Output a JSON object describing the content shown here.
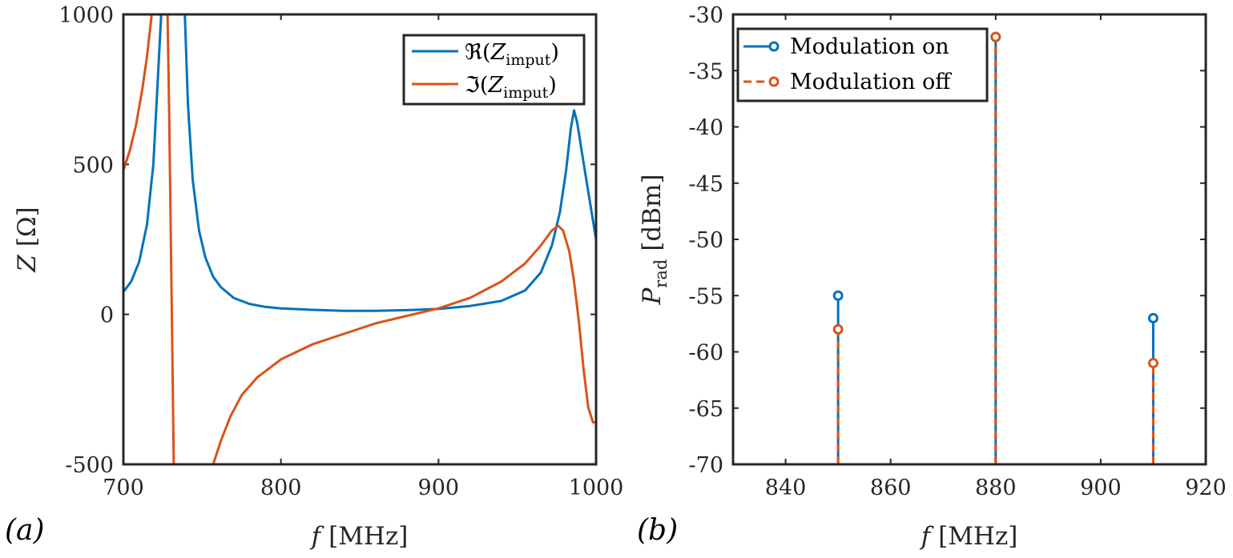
{
  "colors": {
    "blue": "#0072BD",
    "orange": "#D95319",
    "axis": "#262626"
  },
  "chart_data": [
    {
      "type": "line",
      "panel_label": "(a)",
      "xlabel": {
        "symbol": "f",
        "unit": "[MHz]"
      },
      "ylabel": {
        "symbol": "Z",
        "unit": "[Ω]"
      },
      "xlim": [
        700,
        1000
      ],
      "ylim": [
        -500,
        1000
      ],
      "xticks": [
        "700",
        "800",
        "900",
        "1000"
      ],
      "yticks": [
        "-500",
        "0",
        "500",
        "1000"
      ],
      "legend_position": "top-right",
      "series": [
        {
          "name": "ℜ(Zimput)",
          "legend_fn": "ℜ(",
          "legend_var": "Z",
          "legend_sub": "imput",
          "legend_close": ")",
          "color": "#0072BD",
          "dash": "solid",
          "points": [
            [
              700,
              75
            ],
            [
              705,
              110
            ],
            [
              710,
              175
            ],
            [
              715,
              300
            ],
            [
              719,
              500
            ],
            [
              722,
              800
            ],
            [
              724,
              1000
            ],
            [
              739,
              1000
            ],
            [
              741,
              700
            ],
            [
              744,
              450
            ],
            [
              748,
              280
            ],
            [
              752,
              190
            ],
            [
              757,
              125
            ],
            [
              762,
              90
            ],
            [
              770,
              55
            ],
            [
              780,
              35
            ],
            [
              790,
              25
            ],
            [
              800,
              20
            ],
            [
              820,
              15
            ],
            [
              840,
              12
            ],
            [
              860,
              12
            ],
            [
              880,
              14
            ],
            [
              900,
              18
            ],
            [
              920,
              28
            ],
            [
              940,
              45
            ],
            [
              955,
              80
            ],
            [
              965,
              140
            ],
            [
              972,
              230
            ],
            [
              977,
              340
            ],
            [
              981,
              480
            ],
            [
              984,
              620
            ],
            [
              986,
              680
            ],
            [
              988,
              640
            ],
            [
              991,
              540
            ],
            [
              995,
              410
            ],
            [
              1000,
              250
            ]
          ]
        },
        {
          "name": "ℑ(Zimput)",
          "legend_fn": "ℑ(",
          "legend_var": "Z",
          "legend_sub": "imput",
          "legend_close": ")",
          "color": "#D95319",
          "dash": "solid",
          "segments": [
            [
              [
                700,
                480
              ],
              [
                704,
                545
              ],
              [
                708,
                630
              ],
              [
                712,
                750
              ],
              [
                715,
                860
              ],
              [
                718,
                1000
              ]
            ],
            [
              [
                728,
                1000
              ],
              [
                729,
                700
              ],
              [
                730,
                300
              ],
              [
                731,
                -100
              ],
              [
                732,
                -500
              ]
            ],
            [
              [
                757,
                -500
              ],
              [
                762,
                -420
              ],
              [
                768,
                -340
              ],
              [
                775,
                -270
              ],
              [
                785,
                -210
              ],
              [
                800,
                -150
              ],
              [
                820,
                -100
              ],
              [
                840,
                -65
              ],
              [
                860,
                -30
              ],
              [
                880,
                -5
              ],
              [
                900,
                20
              ],
              [
                920,
                55
              ],
              [
                940,
                110
              ],
              [
                955,
                170
              ],
              [
                965,
                230
              ],
              [
                972,
                280
              ],
              [
                976,
                295
              ],
              [
                979,
                280
              ],
              [
                983,
                210
              ],
              [
                986,
                110
              ],
              [
                989,
                -20
              ],
              [
                992,
                -180
              ],
              [
                995,
                -310
              ],
              [
                998,
                -360
              ],
              [
                1000,
                -360
              ]
            ]
          ]
        }
      ]
    },
    {
      "type": "stem",
      "panel_label": "(b)",
      "xlabel": {
        "symbol": "f",
        "unit": "[MHz]"
      },
      "ylabel": {
        "symbol": "P",
        "sub": "rad",
        "unit": "[dBm]"
      },
      "xlim": [
        830,
        920
      ],
      "ylim": [
        -70,
        -30
      ],
      "xticks": [
        "840",
        "860",
        "880",
        "900",
        "920"
      ],
      "yticks": [
        "-30",
        "-35",
        "-40",
        "-45",
        "-50",
        "-55",
        "-60",
        "-65",
        "-70"
      ],
      "legend_position": "top-left",
      "series": [
        {
          "name": "Modulation on",
          "color": "#0072BD",
          "dash": "solid",
          "x": [
            850,
            880,
            910
          ],
          "y": [
            -55,
            -32,
            -57
          ]
        },
        {
          "name": "Modulation off",
          "color": "#D95319",
          "dash": "dashed",
          "x": [
            850,
            880,
            910
          ],
          "y": [
            -58,
            -32,
            -61
          ]
        }
      ]
    }
  ]
}
